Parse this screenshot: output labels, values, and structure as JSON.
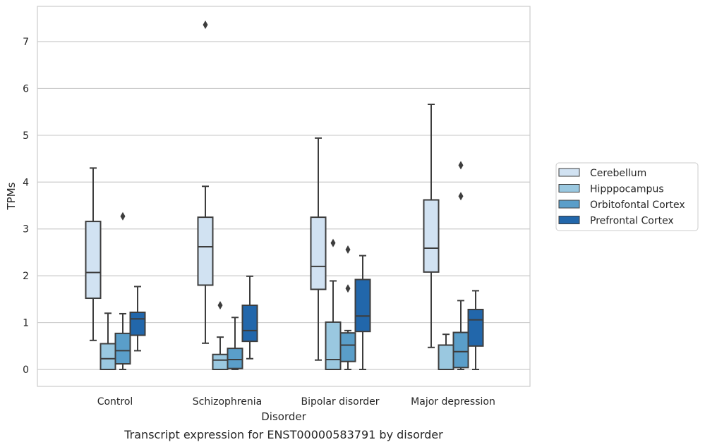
{
  "caption": "Transcript expression for ENST00000583791 by disorder",
  "chart_data": {
    "type": "box",
    "xlabel": "Disorder",
    "ylabel": "TPMs",
    "ylim": [
      -0.35,
      7.75
    ],
    "yticks": [
      0,
      1,
      2,
      3,
      4,
      5,
      6,
      7
    ],
    "grid": "horizontal",
    "legend_position": "right",
    "categories": [
      "Control",
      "Schizophrenia",
      "Bipolar disorder",
      "Major depression"
    ],
    "series": [
      {
        "name": "Cerebellum",
        "color": "#d1e2f2",
        "boxes": [
          {
            "whisker_low": 0.62,
            "q1": 1.52,
            "median": 2.07,
            "q3": 3.16,
            "whisker_high": 4.3,
            "outliers": []
          },
          {
            "whisker_low": 0.56,
            "q1": 1.8,
            "median": 2.62,
            "q3": 3.25,
            "whisker_high": 3.91,
            "outliers": [
              7.36
            ]
          },
          {
            "whisker_low": 0.2,
            "q1": 1.71,
            "median": 2.2,
            "q3": 3.25,
            "whisker_high": 4.94,
            "outliers": []
          },
          {
            "whisker_low": 0.47,
            "q1": 2.08,
            "median": 2.59,
            "q3": 3.62,
            "whisker_high": 5.66,
            "outliers": []
          }
        ]
      },
      {
        "name": "Hipppocampus",
        "color": "#9ac8e0",
        "boxes": [
          {
            "whisker_low": 0.0,
            "q1": 0.0,
            "median": 0.23,
            "q3": 0.55,
            "whisker_high": 1.2,
            "outliers": []
          },
          {
            "whisker_low": 0.0,
            "q1": 0.0,
            "median": 0.2,
            "q3": 0.32,
            "whisker_high": 0.69,
            "outliers": [
              1.37
            ]
          },
          {
            "whisker_low": 0.0,
            "q1": 0.0,
            "median": 0.21,
            "q3": 1.01,
            "whisker_high": 1.89,
            "outliers": [
              2.7
            ]
          },
          {
            "whisker_low": 0.0,
            "q1": 0.0,
            "median": 0.0,
            "q3": 0.52,
            "whisker_high": 0.75,
            "outliers": []
          }
        ]
      },
      {
        "name": "Orbitofontal Cortex",
        "color": "#5a9ec9",
        "boxes": [
          {
            "whisker_low": 0.0,
            "q1": 0.12,
            "median": 0.4,
            "q3": 0.77,
            "whisker_high": 1.19,
            "outliers": [
              3.27
            ]
          },
          {
            "whisker_low": 0.0,
            "q1": 0.02,
            "median": 0.21,
            "q3": 0.45,
            "whisker_high": 1.11,
            "outliers": []
          },
          {
            "whisker_low": 0.0,
            "q1": 0.17,
            "median": 0.52,
            "q3": 0.78,
            "whisker_high": 0.83,
            "outliers": [
              1.73,
              2.56
            ]
          },
          {
            "whisker_low": 0.0,
            "q1": 0.04,
            "median": 0.38,
            "q3": 0.79,
            "whisker_high": 1.47,
            "outliers": [
              3.7,
              4.36
            ]
          }
        ]
      },
      {
        "name": "Prefrontal Cortex",
        "color": "#2267ab",
        "boxes": [
          {
            "whisker_low": 0.4,
            "q1": 0.73,
            "median": 1.08,
            "q3": 1.22,
            "whisker_high": 1.77,
            "outliers": []
          },
          {
            "whisker_low": 0.23,
            "q1": 0.6,
            "median": 0.83,
            "q3": 1.37,
            "whisker_high": 1.99,
            "outliers": []
          },
          {
            "whisker_low": 0.0,
            "q1": 0.81,
            "median": 1.14,
            "q3": 1.92,
            "whisker_high": 2.43,
            "outliers": []
          },
          {
            "whisker_low": 0.0,
            "q1": 0.5,
            "median": 1.06,
            "q3": 1.28,
            "whisker_high": 1.68,
            "outliers": []
          }
        ]
      }
    ]
  }
}
